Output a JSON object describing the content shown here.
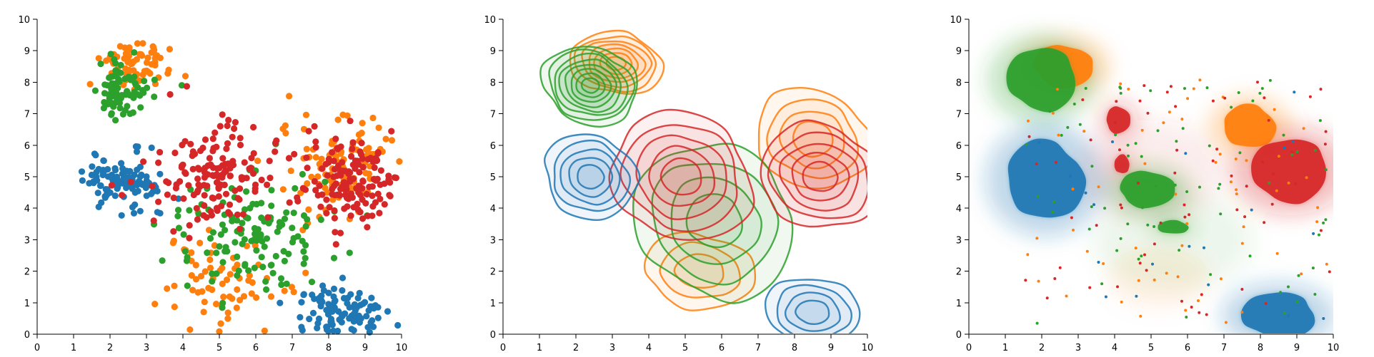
{
  "colors": {
    "blue": "#1f77b4",
    "orange": "#ff7f0e",
    "green": "#2ca02c",
    "red": "#d62728"
  },
  "chart_data": [
    {
      "type": "scatter",
      "title": "",
      "xlabel": "",
      "ylabel": "",
      "xlim": [
        0,
        10
      ],
      "ylim": [
        0,
        10
      ],
      "x_ticks": [
        "0",
        "1",
        "2",
        "3",
        "4",
        "5",
        "6",
        "7",
        "8",
        "9",
        "10"
      ],
      "y_ticks": [
        "0",
        "1",
        "2",
        "3",
        "4",
        "5",
        "6",
        "7",
        "8",
        "9",
        "10"
      ],
      "grid": false,
      "series": [
        {
          "color": "blue",
          "clusters": [
            {
              "cx": 2.3,
              "cy": 4.9,
              "sx": 0.55,
              "sy": 0.45,
              "n": 110
            },
            {
              "cx": 8.4,
              "cy": 0.6,
              "sx": 0.6,
              "sy": 0.4,
              "n": 110
            }
          ]
        },
        {
          "color": "orange",
          "clusters": [
            {
              "cx": 2.8,
              "cy": 8.6,
              "sx": 0.45,
              "sy": 0.35,
              "n": 70
            },
            {
              "cx": 8.3,
              "cy": 5.4,
              "sx": 0.75,
              "sy": 0.8,
              "n": 110
            },
            {
              "cx": 5.0,
              "cy": 1.8,
              "sx": 0.9,
              "sy": 0.8,
              "n": 70
            }
          ]
        },
        {
          "color": "green",
          "clusters": [
            {
              "cx": 2.3,
              "cy": 7.8,
              "sx": 0.4,
              "sy": 0.45,
              "n": 80
            },
            {
              "cx": 5.8,
              "cy": 3.0,
              "sx": 1.1,
              "sy": 1.0,
              "n": 130
            }
          ]
        },
        {
          "color": "red",
          "clusters": [
            {
              "cx": 4.8,
              "cy": 5.0,
              "sx": 0.9,
              "sy": 0.9,
              "n": 150
            },
            {
              "cx": 8.7,
              "cy": 5.0,
              "sx": 0.75,
              "sy": 0.7,
              "n": 150
            }
          ]
        }
      ]
    },
    {
      "type": "contour",
      "title": "",
      "xlabel": "",
      "ylabel": "",
      "xlim": [
        0,
        10
      ],
      "ylim": [
        0,
        10
      ],
      "x_ticks": [
        "0",
        "1",
        "2",
        "3",
        "4",
        "5",
        "6",
        "7",
        "8",
        "9",
        "10"
      ],
      "y_ticks": [
        "0",
        "1",
        "2",
        "3",
        "4",
        "5",
        "6",
        "7",
        "8",
        "9",
        "10"
      ],
      "grid": false,
      "series": [
        {
          "color": "orange",
          "contours": [
            {
              "cx": 3.1,
              "cy": 8.6,
              "rx": 1.25,
              "ry": 1.0,
              "levels": 7
            },
            {
              "cx": 8.5,
              "cy": 6.2,
              "rx": 1.55,
              "ry": 1.6,
              "levels": 4
            },
            {
              "cx": 5.4,
              "cy": 2.0,
              "rx": 1.5,
              "ry": 1.2,
              "levels": 3
            }
          ]
        },
        {
          "color": "green",
          "contours": [
            {
              "cx": 2.4,
              "cy": 7.9,
              "rx": 1.3,
              "ry": 1.25,
              "levels": 8
            },
            {
              "cx": 5.8,
              "cy": 3.6,
              "rx": 2.2,
              "ry": 2.4,
              "levels": 4
            }
          ]
        },
        {
          "color": "red",
          "contours": [
            {
              "cx": 4.9,
              "cy": 5.0,
              "rx": 1.95,
              "ry": 2.0,
              "levels": 5
            },
            {
              "cx": 8.7,
              "cy": 5.0,
              "rx": 1.7,
              "ry": 1.6,
              "levels": 5
            }
          ]
        },
        {
          "color": "blue",
          "contours": [
            {
              "cx": 2.4,
              "cy": 5.0,
              "rx": 1.3,
              "ry": 1.3,
              "levels": 5
            },
            {
              "cx": 8.5,
              "cy": 0.7,
              "rx": 1.35,
              "ry": 1.05,
              "levels": 4
            }
          ]
        }
      ]
    },
    {
      "type": "density",
      "title": "",
      "xlabel": "",
      "ylabel": "",
      "xlim": [
        0,
        10
      ],
      "ylim": [
        0,
        10
      ],
      "x_ticks": [
        "0",
        "1",
        "2",
        "3",
        "4",
        "5",
        "6",
        "7",
        "8",
        "9",
        "10"
      ],
      "y_ticks": [
        "0",
        "1",
        "2",
        "3",
        "4",
        "5",
        "6",
        "7",
        "8",
        "9",
        "10"
      ],
      "grid": false,
      "series": [
        {
          "color": "blue",
          "blobs": [
            {
              "cx": 2.1,
              "cy": 4.9,
              "rx": 1.1,
              "ry": 1.2
            },
            {
              "cx": 8.5,
              "cy": 0.6,
              "rx": 1.05,
              "ry": 0.7
            }
          ]
        },
        {
          "color": "orange",
          "blobs": [
            {
              "cx": 2.6,
              "cy": 8.5,
              "rx": 0.85,
              "ry": 0.65
            },
            {
              "cx": 7.7,
              "cy": 6.6,
              "rx": 0.75,
              "ry": 0.65
            }
          ]
        },
        {
          "color": "green",
          "blobs": [
            {
              "cx": 2.0,
              "cy": 8.1,
              "rx": 1.0,
              "ry": 0.95
            },
            {
              "cx": 4.9,
              "cy": 4.6,
              "rx": 0.8,
              "ry": 0.55
            },
            {
              "cx": 5.6,
              "cy": 3.4,
              "rx": 0.45,
              "ry": 0.2
            }
          ]
        },
        {
          "color": "red",
          "blobs": [
            {
              "cx": 8.8,
              "cy": 5.2,
              "rx": 1.1,
              "ry": 0.95
            },
            {
              "cx": 4.1,
              "cy": 6.8,
              "rx": 0.35,
              "ry": 0.4
            },
            {
              "cx": 4.2,
              "cy": 5.4,
              "rx": 0.22,
              "ry": 0.28
            }
          ]
        }
      ],
      "scattered_points": 220
    }
  ]
}
